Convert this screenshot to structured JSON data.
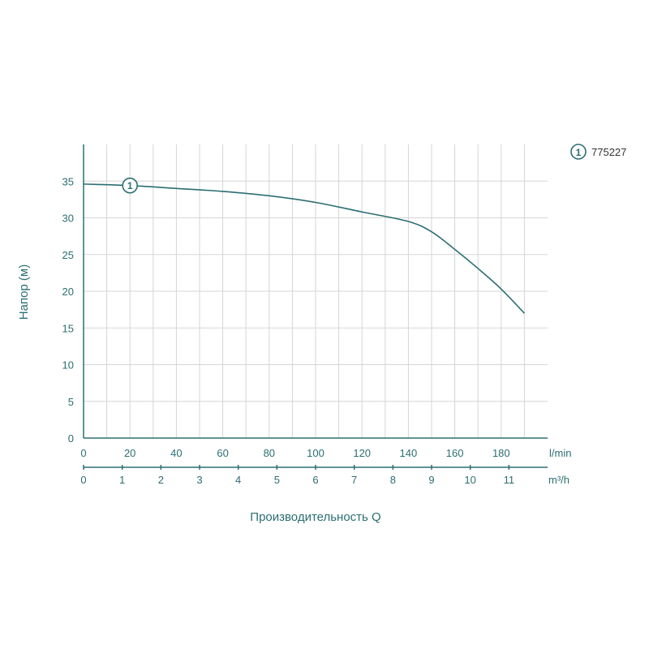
{
  "chart_data": {
    "type": "line",
    "ylabel": "Напор (м)",
    "xlabel": "Производительность Q",
    "x_unit_primary": "l/min",
    "x_unit_secondary": "m³/h",
    "x_range": [
      0,
      200
    ],
    "ylim": [
      0,
      40
    ],
    "y_ticks": [
      0,
      5,
      10,
      15,
      20,
      25,
      30,
      35
    ],
    "x_ticks_primary": [
      0,
      20,
      40,
      60,
      80,
      100,
      120,
      140,
      160,
      180
    ],
    "x_ticks_secondary": [
      0,
      1,
      2,
      3,
      4,
      5,
      6,
      7,
      8,
      9,
      10,
      11
    ],
    "grid": true,
    "legend_position": "top-right",
    "series": [
      {
        "name": "775227",
        "marker": "1",
        "color": "#2b6e72",
        "x": [
          0,
          20,
          40,
          60,
          80,
          100,
          120,
          140,
          150,
          160,
          170,
          180,
          190
        ],
        "y": [
          34.6,
          34.4,
          34.0,
          33.6,
          33.0,
          32.1,
          30.8,
          29.5,
          28.1,
          25.7,
          23.1,
          20.3,
          17.0
        ]
      }
    ]
  }
}
